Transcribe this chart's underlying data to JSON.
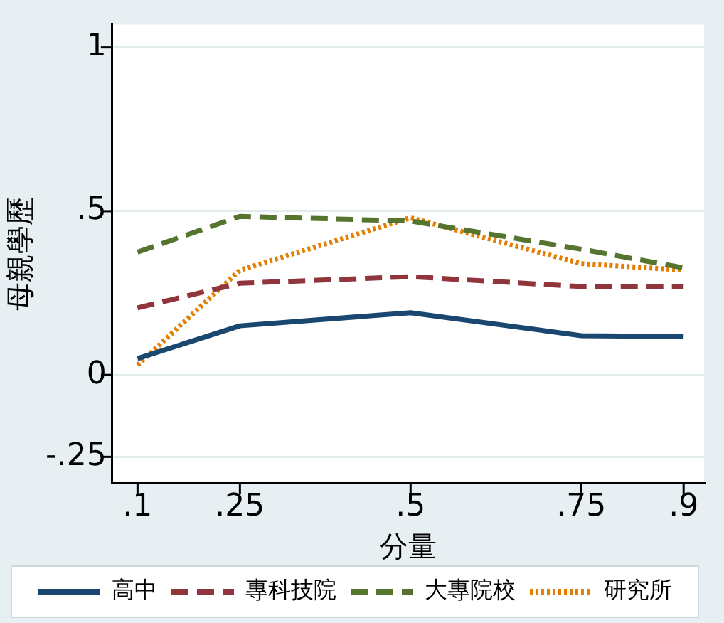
{
  "chart_data": {
    "type": "line",
    "xlabel": "分量",
    "ylabel": "母親學歷",
    "x": [
      0.1,
      0.25,
      0.5,
      0.75,
      0.9
    ],
    "series": [
      {
        "name": "高中",
        "color": "#1a476f",
        "line_style": "solid",
        "values": [
          0.05,
          0.15,
          0.19,
          0.12,
          0.117
        ]
      },
      {
        "name": "專科技院",
        "color": "#90353b",
        "line_style": "dashed",
        "values": [
          0.205,
          0.28,
          0.3,
          0.27,
          0.27
        ]
      },
      {
        "name": "大專院校",
        "color": "#55752f",
        "line_style": "dashed",
        "values": [
          0.375,
          0.484,
          0.47,
          0.384,
          0.327
        ]
      },
      {
        "name": "研究所",
        "color": "#e37e00",
        "line_style": "dotted",
        "values": [
          0.03,
          0.32,
          0.48,
          0.34,
          0.32
        ]
      }
    ],
    "xlim": [
      0.063,
      0.93
    ],
    "ylim": [
      -0.33,
      1.07
    ],
    "xticks": [
      {
        "value": 0.1,
        "label": ".1"
      },
      {
        "value": 0.25,
        "label": ".25"
      },
      {
        "value": 0.5,
        "label": ".5"
      },
      {
        "value": 0.75,
        "label": ".75"
      },
      {
        "value": 0.9,
        "label": ".9"
      }
    ],
    "yticks": [
      {
        "value": -0.25,
        "label": "-.25"
      },
      0,
      {
        "value": 0.5,
        "label": ".5"
      },
      1
    ],
    "grid": "y",
    "legend": "bottom",
    "marker": "none"
  }
}
